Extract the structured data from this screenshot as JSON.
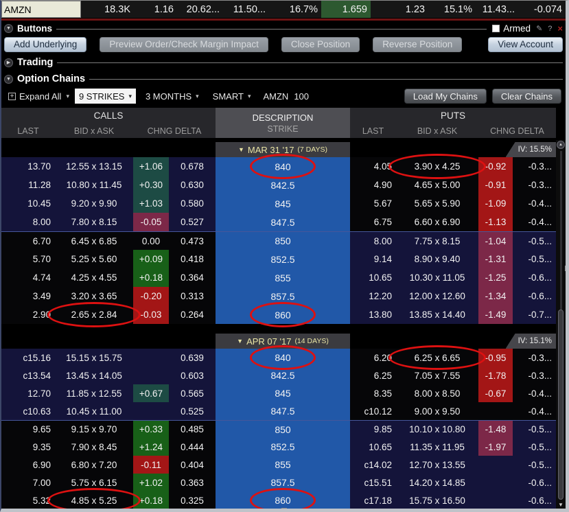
{
  "colors": {
    "strike_blue": "#2158a8",
    "itm_navy": "#14143a",
    "row_black": "#060608",
    "chng_green": "#186018",
    "chng_teal": "#1d4b44",
    "chng_red": "#a31616",
    "chng_plum": "#7c2848",
    "circle_red": "#dd1111",
    "quote_green": "#2d5930",
    "symbol_bg": "#e9e9d8"
  },
  "icons": {
    "collapse": "▼",
    "expand": "▶",
    "caret": "▾",
    "plus": "+",
    "scroll_up": "▲",
    "scroll_down": "▼",
    "pin": "✎",
    "help": "?",
    "close": "×"
  },
  "quote_row": {
    "symbol": "AMZN",
    "cells": [
      {
        "t": "18.3K"
      },
      {
        "t": "1.16"
      },
      {
        "t": "20.62..."
      },
      {
        "t": "11.50..."
      },
      {
        "t": "16.7%"
      },
      {
        "t": "1.659",
        "hl": "green"
      },
      {
        "t": "1.23"
      },
      {
        "t": "15.1%"
      },
      {
        "t": "11.43..."
      },
      {
        "t": "-0.074"
      }
    ]
  },
  "buttons_panel": {
    "title": "Buttons",
    "armed_label": "Armed",
    "buttons": [
      {
        "label": "Add Underlying",
        "enabled": true
      },
      {
        "label": "Preview Order/Check Margin Impact",
        "enabled": false
      },
      {
        "label": "Close Position",
        "enabled": false
      },
      {
        "label": "Reverse Position",
        "enabled": false
      },
      {
        "label": "View Account",
        "enabled": true
      }
    ]
  },
  "trading_panel": {
    "title": "Trading"
  },
  "chains_panel": {
    "title": "Option Chains",
    "toolbar": {
      "expand_all": "Expand All",
      "strikes": "9 STRIKES",
      "months": "3 MONTHS",
      "route": "SMART",
      "symbol": "AMZN",
      "multiplier": "100",
      "load": "Load My Chains",
      "clear": "Clear Chains"
    },
    "header": {
      "calls": "CALLS",
      "puts": "PUTS",
      "description": "DESCRIPTION",
      "strike": "STRIKE",
      "last": "LAST",
      "bidask": "BID x ASK",
      "chngdelta": "CHNG DELTA"
    },
    "groups": [
      {
        "expiry": "MAR 31 '17",
        "days": "(7 DAYS)",
        "iv": "IV: 15.5%",
        "rows": [
          {
            "strike": "840",
            "c_last": "13.70",
            "c_ba": "12.55 x 13.15",
            "c_chg": "+1.06",
            "c_d": "0.678",
            "p_last": "4.05",
            "p_ba": "3.90 x 4.25",
            "p_chg": "-0.92",
            "p_d": "-0.3...",
            "circles": [
              "strike",
              "p_ba"
            ]
          },
          {
            "strike": "842.5",
            "c_last": "11.28",
            "c_ba": "10.80 x 11.45",
            "c_chg": "+0.30",
            "c_d": "0.630",
            "p_last": "4.90",
            "p_ba": "4.65 x 5.00",
            "p_chg": "-0.91",
            "p_d": "-0.3...",
            "circles": []
          },
          {
            "strike": "845",
            "c_last": "10.45",
            "c_ba": "9.20 x 9.90",
            "c_chg": "+1.03",
            "c_d": "0.580",
            "p_last": "5.67",
            "p_ba": "5.65 x 5.90",
            "p_chg": "-1.09",
            "p_d": "-0.4...",
            "circles": []
          },
          {
            "strike": "847.5",
            "c_last": "8.00",
            "c_ba": "7.80 x 8.15",
            "c_chg": "-0.05",
            "c_d": "0.527",
            "p_last": "6.75",
            "p_ba": "6.60 x 6.90",
            "p_chg": "-1.13",
            "p_d": "-0.4...",
            "circles": []
          },
          {
            "strike": "850",
            "c_last": "6.70",
            "c_ba": "6.45 x 6.85",
            "c_chg": "0.00",
            "c_d": "0.473",
            "p_last": "8.00",
            "p_ba": "7.75 x 8.15",
            "p_chg": "-1.04",
            "p_d": "-0.5...",
            "circles": []
          },
          {
            "strike": "852.5",
            "c_last": "5.70",
            "c_ba": "5.25 x 5.60",
            "c_chg": "+0.09",
            "c_d": "0.418",
            "p_last": "9.14",
            "p_ba": "8.90 x 9.40",
            "p_chg": "-1.31",
            "p_d": "-0.5...",
            "circles": []
          },
          {
            "strike": "855",
            "c_last": "4.74",
            "c_ba": "4.25 x 4.55",
            "c_chg": "+0.18",
            "c_d": "0.364",
            "p_last": "10.65",
            "p_ba": "10.30 x 11.05",
            "p_chg": "-1.25",
            "p_d": "-0.6...",
            "circles": []
          },
          {
            "strike": "857.5",
            "c_last": "3.49",
            "c_ba": "3.20 x 3.65",
            "c_chg": "-0.20",
            "c_d": "0.313",
            "p_last": "12.20",
            "p_ba": "12.00 x 12.60",
            "p_chg": "-1.34",
            "p_d": "-0.6...",
            "circles": []
          },
          {
            "strike": "860",
            "c_last": "2.90",
            "c_ba": "2.65 x 2.84",
            "c_chg": "-0.03",
            "c_d": "0.264",
            "p_last": "13.80",
            "p_ba": "13.85 x 14.40",
            "p_chg": "-1.49",
            "p_d": "-0.7...",
            "circles": [
              "c_ba",
              "strike"
            ]
          }
        ]
      },
      {
        "expiry": "APR 07 '17",
        "days": "(14 DAYS)",
        "iv": "IV: 15.1%",
        "rows": [
          {
            "strike": "840",
            "c_last": "c15.16",
            "c_ba": "15.15 x 15.75",
            "c_chg": "",
            "c_d": "0.639",
            "p_last": "6.20",
            "p_ba": "6.25 x 6.65",
            "p_chg": "-0.95",
            "p_d": "-0.3...",
            "circles": [
              "strike",
              "p_ba"
            ]
          },
          {
            "strike": "842.5",
            "c_last": "c13.54",
            "c_ba": "13.45 x 14.05",
            "c_chg": "",
            "c_d": "0.603",
            "p_last": "6.25",
            "p_ba": "7.05 x 7.55",
            "p_chg": "-1.78",
            "p_d": "-0.3...",
            "circles": []
          },
          {
            "strike": "845",
            "c_last": "12.70",
            "c_ba": "11.85 x 12.55",
            "c_chg": "+0.67",
            "c_d": "0.565",
            "p_last": "8.35",
            "p_ba": "8.00 x 8.50",
            "p_chg": "-0.67",
            "p_d": "-0.4...",
            "circles": []
          },
          {
            "strike": "847.5",
            "c_last": "c10.63",
            "c_ba": "10.45 x 11.00",
            "c_chg": "",
            "c_d": "0.525",
            "p_last": "c10.12",
            "p_ba": "9.00 x 9.50",
            "p_chg": "",
            "p_d": "-0.4...",
            "circles": []
          },
          {
            "strike": "850",
            "c_last": "9.65",
            "c_ba": "9.15 x 9.70",
            "c_chg": "+0.33",
            "c_d": "0.485",
            "p_last": "9.85",
            "p_ba": "10.10 x 10.80",
            "p_chg": "-1.48",
            "p_d": "-0.5...",
            "circles": []
          },
          {
            "strike": "852.5",
            "c_last": "9.35",
            "c_ba": "7.90 x 8.45",
            "c_chg": "+1.24",
            "c_d": "0.444",
            "p_last": "10.65",
            "p_ba": "11.35 x 11.95",
            "p_chg": "-1.97",
            "p_d": "-0.5...",
            "circles": []
          },
          {
            "strike": "855",
            "c_last": "6.90",
            "c_ba": "6.80 x 7.20",
            "c_chg": "-0.11",
            "c_d": "0.404",
            "p_last": "c14.02",
            "p_ba": "12.70 x 13.55",
            "p_chg": "",
            "p_d": "-0.5...",
            "circles": []
          },
          {
            "strike": "857.5",
            "c_last": "7.00",
            "c_ba": "5.75 x 6.15",
            "c_chg": "+1.02",
            "c_d": "0.363",
            "p_last": "c15.51",
            "p_ba": "14.20 x 14.85",
            "p_chg": "",
            "p_d": "-0.6...",
            "circles": []
          },
          {
            "strike": "860",
            "c_last": "5.32",
            "c_ba": "4.85 x 5.25",
            "c_chg": "+0.18",
            "c_d": "0.325",
            "p_last": "c17.18",
            "p_ba": "15.75 x 16.50",
            "p_chg": "",
            "p_d": "-0.6...",
            "circles": [
              "c_ba",
              "strike"
            ]
          }
        ]
      }
    ]
  }
}
